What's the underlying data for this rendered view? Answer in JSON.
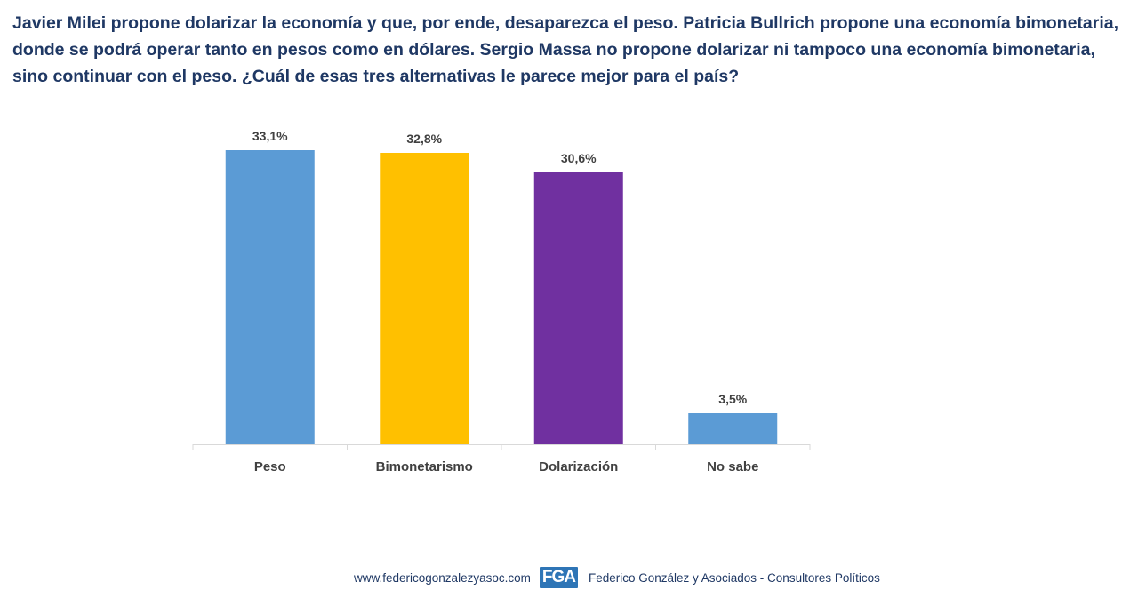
{
  "question": "Javier Milei propone dolarizar la economía y que, por ende, desaparezca el peso. Patricia Bullrich propone una economía bimonetaria, donde se podrá operar tanto en pesos como en dólares. Sergio Massa no propone dolarizar ni tampoco una economía bimonetaria, sino continuar con el peso. ¿Cuál de esas tres alternativas le parece mejor para el país?",
  "chart_data": {
    "type": "bar",
    "title": "",
    "xlabel": "",
    "ylabel": "",
    "ylim": [
      0,
      35
    ],
    "grid": false,
    "categories": [
      "Peso",
      "Bimonetarismo",
      "Dolarización",
      "No sabe"
    ],
    "values": [
      33.1,
      32.8,
      30.6,
      3.5
    ],
    "value_labels": [
      "33,1%",
      "32,8%",
      "30,6%",
      "3,5%"
    ],
    "colors": [
      "#5b9bd5",
      "#ffc000",
      "#7030a0",
      "#5b9bd5"
    ]
  },
  "footer": {
    "website": "www.federicogonzalezyasoc.com",
    "logo_text": "FGA",
    "company": "Federico González y Asociados - Consultores Políticos"
  }
}
